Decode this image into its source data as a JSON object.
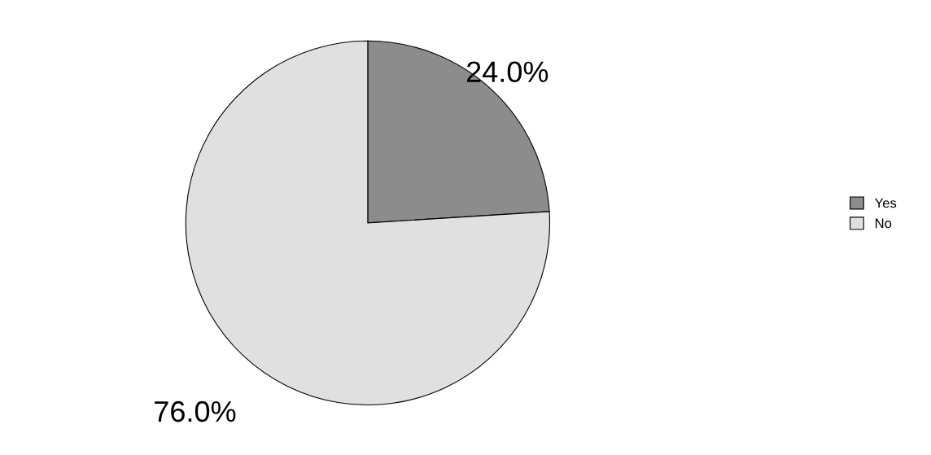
{
  "chart_data": {
    "type": "pie",
    "categories": [
      "Yes",
      "No"
    ],
    "values": [
      24,
      76
    ],
    "colors": [
      "#8c8c8c",
      "#e0e0e0"
    ],
    "value_labels": [
      "24.0%",
      "76.0%"
    ],
    "legend": "right"
  }
}
